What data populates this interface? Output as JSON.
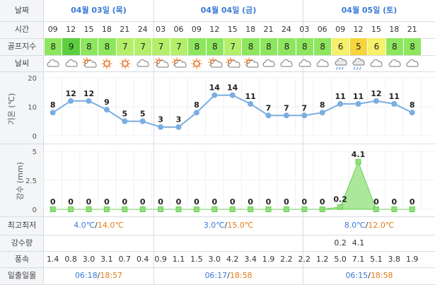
{
  "labels": {
    "date": "날짜",
    "time": "시간",
    "golf_index": "골프지수",
    "weather": "날씨",
    "temp_axis": "기온 (℃)",
    "rain_axis": "강수 (mm)",
    "minmax": "최고최저",
    "rain_amount": "강수량",
    "wind": "풍속",
    "sun": "일출일몰"
  },
  "dates": [
    "04월 03일 (목)",
    "04월 04일 (금)",
    "04월 05일 (토)"
  ],
  "hours": [
    "09",
    "12",
    "15",
    "18",
    "21",
    "24",
    "03",
    "06",
    "09",
    "12",
    "15",
    "18",
    "21",
    "24",
    "03",
    "06",
    "09",
    "12",
    "15",
    "18",
    "21"
  ],
  "golf_index": [
    8,
    9,
    8,
    8,
    7,
    7,
    7,
    7,
    8,
    8,
    7,
    8,
    8,
    8,
    8,
    8,
    6,
    5,
    6,
    8,
    8
  ],
  "golf_colors": {
    "9": "#5ccf3f",
    "8": "#8ee65f",
    "7": "#b4ef6a",
    "6": "#f6f06a",
    "5": "#f6d43a"
  },
  "weather_icons": [
    "cloudy-icon",
    "cloudy-icon",
    "partly-cloudy-icon",
    "sun-icon",
    "sun-icon",
    "cloudy-icon",
    "partly-cloudy-icon",
    "partly-cloudy-icon",
    "sun-icon",
    "partly-cloudy-icon",
    "partly-cloudy-icon",
    "partly-cloudy-icon",
    "cloudy-icon",
    "cloudy-icon",
    "cloudy-icon",
    "cloudy-icon",
    "rain-icon",
    "rain-icon",
    "cloudy-icon",
    "cloudy-icon",
    "cloudy-icon"
  ],
  "chart_data": [
    {
      "type": "line",
      "ylabel": "기온 (℃)",
      "ylim": [
        0,
        20
      ],
      "yticks": [
        "0",
        "10",
        "20"
      ],
      "x": [
        "09",
        "12",
        "15",
        "18",
        "21",
        "24",
        "03",
        "06",
        "09",
        "12",
        "15",
        "18",
        "21",
        "24",
        "03",
        "06",
        "09",
        "12",
        "15",
        "18",
        "21"
      ],
      "values": [
        8,
        12,
        12,
        9,
        5,
        5,
        3,
        3,
        8,
        14,
        14,
        11,
        7,
        7,
        7,
        8,
        11,
        11,
        12,
        11,
        8
      ],
      "color": "#7aaee0",
      "grid": true
    },
    {
      "type": "area",
      "ylabel": "강수 (mm)",
      "ylim": [
        0,
        5
      ],
      "yticks": [
        "0",
        "2.5",
        "5"
      ],
      "x": [
        "09",
        "12",
        "15",
        "18",
        "21",
        "24",
        "03",
        "06",
        "09",
        "12",
        "15",
        "18",
        "21",
        "24",
        "03",
        "06",
        "09",
        "12",
        "15",
        "18",
        "21"
      ],
      "values": [
        0,
        0,
        0,
        0,
        0,
        0,
        0,
        0,
        0,
        0,
        0,
        0,
        0,
        0,
        0,
        0,
        0.2,
        4.1,
        0,
        0,
        0
      ],
      "color": "#8fe07a",
      "grid": true
    }
  ],
  "minmax": [
    {
      "min": "4.0℃",
      "max": "14.0℃"
    },
    {
      "min": "3.0℃",
      "max": "15.0℃"
    },
    {
      "min": "8.0℃",
      "max": "12.0℃"
    }
  ],
  "separator": "/",
  "rain_amount": [
    "",
    "",
    "",
    "",
    "",
    "",
    "",
    "",
    "",
    "",
    "",
    "",
    "",
    "",
    "",
    "",
    "0.2",
    "4.1",
    "",
    "",
    ""
  ],
  "wind": [
    "1.4",
    "0.8",
    "3.0",
    "3.1",
    "0.7",
    "0.4",
    "0.9",
    "1.1",
    "1.5",
    "3.0",
    "4.2",
    "3.4",
    "1.9",
    "2.2",
    "2.2",
    "1.2",
    "5.0",
    "7.1",
    "5.1",
    "3.8",
    "1.9"
  ],
  "sun": [
    {
      "rise": "06:18",
      "set": "18:57"
    },
    {
      "rise": "06:17",
      "set": "18:58"
    },
    {
      "rise": "06:15",
      "set": "18:58"
    }
  ]
}
